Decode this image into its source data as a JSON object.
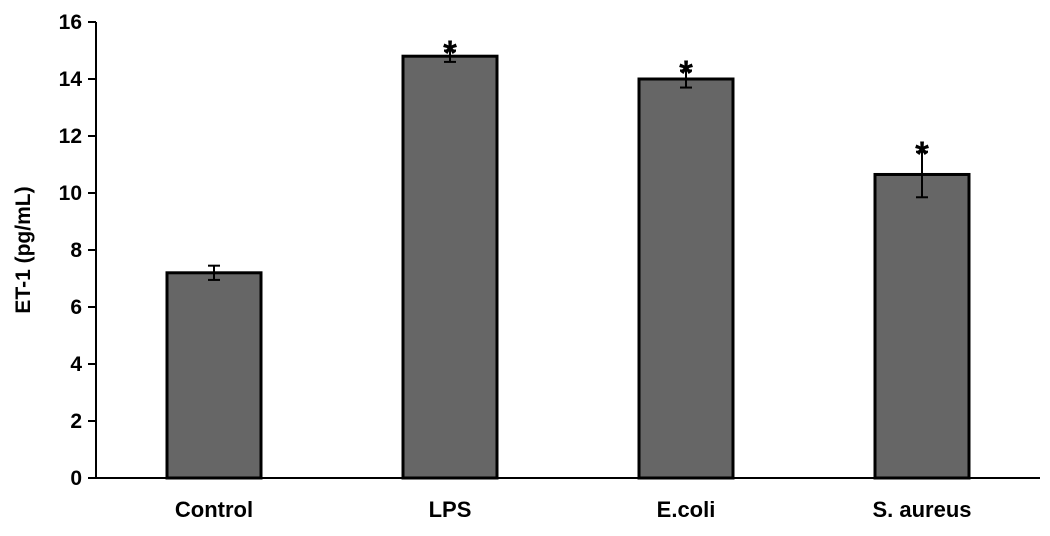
{
  "chart_data": {
    "type": "bar",
    "categories": [
      "Control",
      "LPS",
      "E.coli",
      "S. aureus"
    ],
    "values": [
      7.2,
      14.8,
      14.0,
      10.65
    ],
    "errors": [
      0.25,
      0.2,
      0.3,
      0.8
    ],
    "significance": [
      "",
      "*",
      "*",
      "*"
    ],
    "xlabel": "",
    "ylabel": "ET-1 (pg/mL)",
    "ylim": [
      0,
      16
    ],
    "yticks": [
      "0",
      "2",
      "4",
      "6",
      "8",
      "10",
      "12",
      "14",
      "16"
    ],
    "grid": false,
    "legend": "none",
    "colors": {
      "bar_fill": "#666666",
      "bar_stroke": "#000000"
    }
  }
}
